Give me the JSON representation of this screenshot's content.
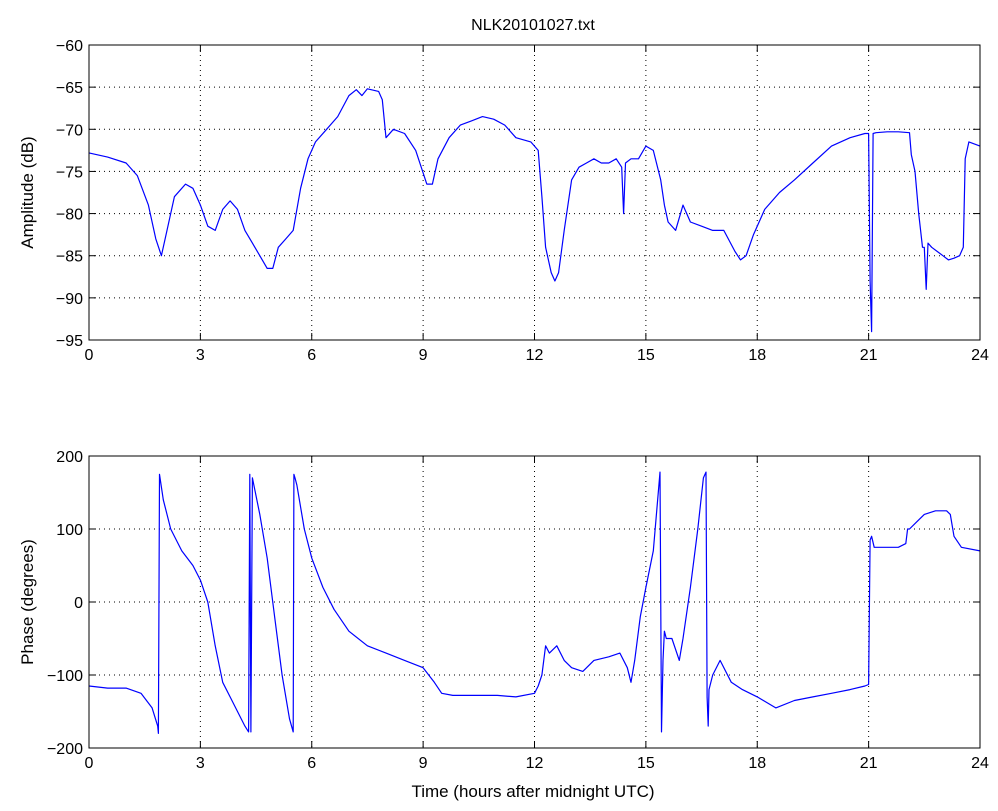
{
  "figure_title": "NLK20101027.txt",
  "xlabel": "Time (hours after midnight UTC)",
  "colors": {
    "line": "#0000ff",
    "axis": "#000000",
    "grid": "#000000",
    "background": "#ffffff"
  },
  "chart_data": [
    {
      "type": "line",
      "title": "NLK20101027.txt",
      "xlabel": "",
      "ylabel": "Amplitude (dB)",
      "xlim": [
        0,
        24
      ],
      "ylim": [
        -95,
        -60
      ],
      "xticks": [
        0,
        3,
        6,
        9,
        12,
        15,
        18,
        21,
        24
      ],
      "yticks": [
        -95,
        -90,
        -85,
        -80,
        -75,
        -70,
        -65,
        -60
      ],
      "grid": true,
      "series": [
        {
          "x": [
            0,
            0.5,
            1.0,
            1.3,
            1.6,
            1.8,
            1.95,
            2.1,
            2.3,
            2.6,
            2.8,
            3.0,
            3.2,
            3.4,
            3.6,
            3.8,
            4.0,
            4.2,
            4.4,
            4.6,
            4.8,
            4.95,
            5.1,
            5.3,
            5.5,
            5.7,
            5.9,
            6.1,
            6.4,
            6.7,
            7.0,
            7.2,
            7.35,
            7.5,
            7.8,
            7.9,
            8.0,
            8.2,
            8.5,
            8.8,
            9.1,
            9.25,
            9.4,
            9.7,
            10.0,
            10.3,
            10.6,
            10.9,
            11.2,
            11.5,
            11.9,
            12.1,
            12.2,
            12.3,
            12.45,
            12.55,
            12.65,
            12.8,
            13.0,
            13.2,
            13.4,
            13.6,
            13.8,
            14.0,
            14.2,
            14.35,
            14.4,
            14.45,
            14.6,
            14.8,
            15.0,
            15.2,
            15.4,
            15.5,
            15.6,
            15.8,
            16.0,
            16.2,
            16.5,
            16.8,
            17.1,
            17.4,
            17.55,
            17.7,
            17.9,
            18.2,
            18.6,
            19.0,
            19.5,
            20.0,
            20.5,
            20.9,
            21.0,
            21.04,
            21.08,
            21.12,
            21.2,
            21.5,
            21.8,
            22.1,
            22.15,
            22.25,
            22.35,
            22.45,
            22.5,
            22.55,
            22.6,
            22.7,
            22.85,
            23.0,
            23.15,
            23.3,
            23.45,
            23.55,
            23.6,
            23.7,
            24.0
          ],
          "y": [
            -72.8,
            -73.3,
            -74,
            -75.5,
            -79,
            -83,
            -85,
            -82,
            -78,
            -76.5,
            -77,
            -79,
            -81.5,
            -82,
            -79.5,
            -78.5,
            -79.5,
            -82,
            -83.5,
            -85,
            -86.5,
            -86.5,
            -84,
            -83,
            -82,
            -77,
            -73.5,
            -71.5,
            -70,
            -68.5,
            -66,
            -65.3,
            -66,
            -65.2,
            -65.5,
            -66.5,
            -71,
            -70,
            -70.5,
            -72.5,
            -76.5,
            -76.5,
            -73.5,
            -71,
            -69.5,
            -69,
            -68.5,
            -68.8,
            -69.5,
            -71,
            -71.5,
            -72.5,
            -78,
            -84,
            -87,
            -88,
            -87,
            -82,
            -76,
            -74.5,
            -74,
            -73.5,
            -74,
            -74,
            -73.5,
            -74.5,
            -80,
            -74,
            -73.5,
            -73.5,
            -72,
            -72.5,
            -76,
            -79,
            -81,
            -82,
            -79,
            -81,
            -81.5,
            -82,
            -82,
            -84.5,
            -85.5,
            -85,
            -82.5,
            -79.5,
            -77.5,
            -76,
            -74,
            -72,
            -71,
            -70.5,
            -70.5,
            -88,
            -94,
            -70.5,
            -70.4,
            -70.3,
            -70.3,
            -70.4,
            -73,
            -75,
            -80,
            -84,
            -84,
            -89,
            -83.5,
            -84,
            -84.5,
            -85,
            -85.5,
            -85.3,
            -85,
            -84,
            -73.5,
            -71.5,
            -72
          ]
        }
      ]
    },
    {
      "type": "line",
      "title": "",
      "xlabel": "Time (hours after midnight UTC)",
      "ylabel": "Phase (degrees)",
      "xlim": [
        0,
        24
      ],
      "ylim": [
        -200,
        200
      ],
      "xticks": [
        0,
        3,
        6,
        9,
        12,
        15,
        18,
        21,
        24
      ],
      "yticks": [
        -200,
        -100,
        0,
        100,
        200
      ],
      "grid": true,
      "series": [
        {
          "x": [
            0,
            0.5,
            1.0,
            1.4,
            1.7,
            1.85,
            1.87,
            1.9,
            2.0,
            2.2,
            2.5,
            2.8,
            3.0,
            3.2,
            3.4,
            3.6,
            3.8,
            4.0,
            4.2,
            4.3,
            4.33,
            4.36,
            4.4,
            4.6,
            4.8,
            5.0,
            5.2,
            5.4,
            5.5,
            5.52,
            5.55,
            5.6,
            5.8,
            6.0,
            6.3,
            6.6,
            7.0,
            7.5,
            8.0,
            8.5,
            9.0,
            9.3,
            9.5,
            9.8,
            10.0,
            10.5,
            11.0,
            11.5,
            12.0,
            12.1,
            12.2,
            12.3,
            12.4,
            12.6,
            12.8,
            13.0,
            13.3,
            13.6,
            14.0,
            14.3,
            14.5,
            14.6,
            14.7,
            14.85,
            15.0,
            15.2,
            15.35,
            15.38,
            15.42,
            15.46,
            15.5,
            15.55,
            15.7,
            15.9,
            16.0,
            16.2,
            16.4,
            16.55,
            16.62,
            16.65,
            16.68,
            16.7,
            16.8,
            17.0,
            17.3,
            17.6,
            18.0,
            18.5,
            19.0,
            19.5,
            20.0,
            20.5,
            20.9,
            21.0,
            21.04,
            21.08,
            21.15,
            21.5,
            21.8,
            22.0,
            22.05,
            22.1,
            22.3,
            22.5,
            22.8,
            23.0,
            23.1,
            23.2,
            23.3,
            23.5,
            24.0
          ],
          "y": [
            -115,
            -118,
            -118,
            -125,
            -145,
            -170,
            -180,
            175,
            140,
            100,
            70,
            50,
            30,
            0,
            -60,
            -110,
            -130,
            -150,
            -170,
            -178,
            175,
            -178,
            170,
            120,
            60,
            -20,
            -100,
            -160,
            -178,
            175,
            170,
            160,
            100,
            60,
            20,
            -10,
            -40,
            -60,
            -70,
            -80,
            -90,
            -110,
            -125,
            -128,
            -128,
            -128,
            -128,
            -130,
            -125,
            -115,
            -100,
            -60,
            -70,
            -60,
            -80,
            -90,
            -95,
            -80,
            -75,
            -70,
            -90,
            -110,
            -80,
            -20,
            20,
            70,
            160,
            178,
            -178,
            -80,
            -40,
            -50,
            -50,
            -80,
            -50,
            20,
            100,
            170,
            178,
            -130,
            -170,
            -120,
            -100,
            -80,
            -110,
            -120,
            -130,
            -145,
            -135,
            -130,
            -125,
            -120,
            -115,
            -113,
            85,
            90,
            75,
            75,
            75,
            80,
            100,
            100,
            110,
            120,
            125,
            125,
            125,
            120,
            90,
            75,
            70
          ]
        }
      ]
    }
  ]
}
